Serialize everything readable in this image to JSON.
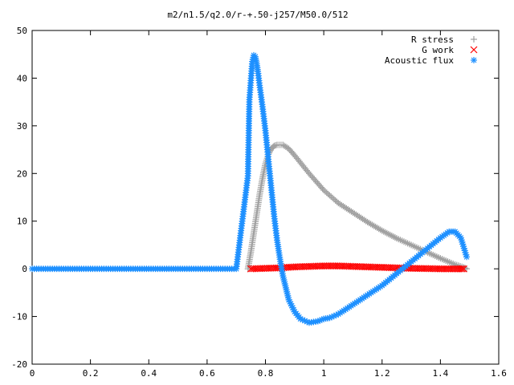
{
  "chart_data": {
    "type": "scatter",
    "title": "m2/n1.5/q2.0/r-+.50-j257/M50.0/512",
    "xlabel": "",
    "ylabel": "",
    "xlim": [
      0,
      1.6
    ],
    "ylim": [
      -20,
      50
    ],
    "x_ticks": [
      "0",
      "0.2",
      "0.4",
      "0.6",
      "0.8",
      "1",
      "1.2",
      "1.4",
      "1.6"
    ],
    "y_ticks": [
      "-20",
      "-10",
      "0",
      "10",
      "20",
      "30",
      "40",
      "50"
    ],
    "grid": false,
    "legend_position": "top-right",
    "series": [
      {
        "name": "R stress",
        "marker": "plus",
        "color": "#a0a0a0",
        "x": [
          0.74,
          0.75,
          0.76,
          0.77,
          0.78,
          0.79,
          0.8,
          0.81,
          0.82,
          0.83,
          0.84,
          0.86,
          0.88,
          0.9,
          0.95,
          1.0,
          1.05,
          1.1,
          1.15,
          1.2,
          1.25,
          1.3,
          1.35,
          1.4,
          1.45,
          1.48,
          1.49
        ],
        "y": [
          0.0,
          3.5,
          7.5,
          11.5,
          15.5,
          19.0,
          22.0,
          24.0,
          25.2,
          25.8,
          26.0,
          26.0,
          25.2,
          23.8,
          20.0,
          16.5,
          13.8,
          11.8,
          9.8,
          8.0,
          6.4,
          5.0,
          3.6,
          2.2,
          0.9,
          0.3,
          0.0
        ]
      },
      {
        "name": "G work",
        "marker": "cross",
        "color": "#ff0000",
        "x": [
          0.75,
          0.8,
          0.85,
          0.9,
          0.95,
          1.0,
          1.05,
          1.1,
          1.15,
          1.2,
          1.25,
          1.3,
          1.35,
          1.4,
          1.45,
          1.48
        ],
        "y": [
          0.0,
          0.1,
          0.2,
          0.4,
          0.5,
          0.6,
          0.6,
          0.5,
          0.4,
          0.3,
          0.2,
          0.1,
          0.05,
          0.0,
          0.0,
          0.0
        ]
      },
      {
        "name": "Acoustic flux",
        "marker": "star",
        "color": "#1e90ff",
        "x": [
          0.0,
          0.1,
          0.2,
          0.3,
          0.4,
          0.5,
          0.6,
          0.7,
          0.74,
          0.745,
          0.75,
          0.755,
          0.76,
          0.765,
          0.77,
          0.775,
          0.78,
          0.79,
          0.8,
          0.81,
          0.82,
          0.83,
          0.84,
          0.85,
          0.86,
          0.87,
          0.88,
          0.9,
          0.92,
          0.95,
          0.98,
          1.0,
          1.02,
          1.05,
          1.1,
          1.15,
          1.2,
          1.25,
          1.3,
          1.35,
          1.4,
          1.43,
          1.45,
          1.47,
          1.49
        ],
        "y": [
          0.0,
          0.0,
          0.0,
          0.0,
          0.0,
          0.0,
          0.0,
          0.0,
          19.5,
          35.5,
          39.5,
          43.5,
          44.8,
          44.5,
          43.0,
          41.0,
          38.5,
          34.0,
          29.0,
          23.0,
          17.0,
          11.0,
          6.0,
          2.0,
          -1.5,
          -4.0,
          -6.5,
          -9.0,
          -10.5,
          -11.3,
          -11.0,
          -10.5,
          -10.3,
          -9.5,
          -7.5,
          -5.5,
          -3.5,
          -1.0,
          1.5,
          4.0,
          6.5,
          7.8,
          7.8,
          6.5,
          2.5
        ]
      }
    ]
  }
}
